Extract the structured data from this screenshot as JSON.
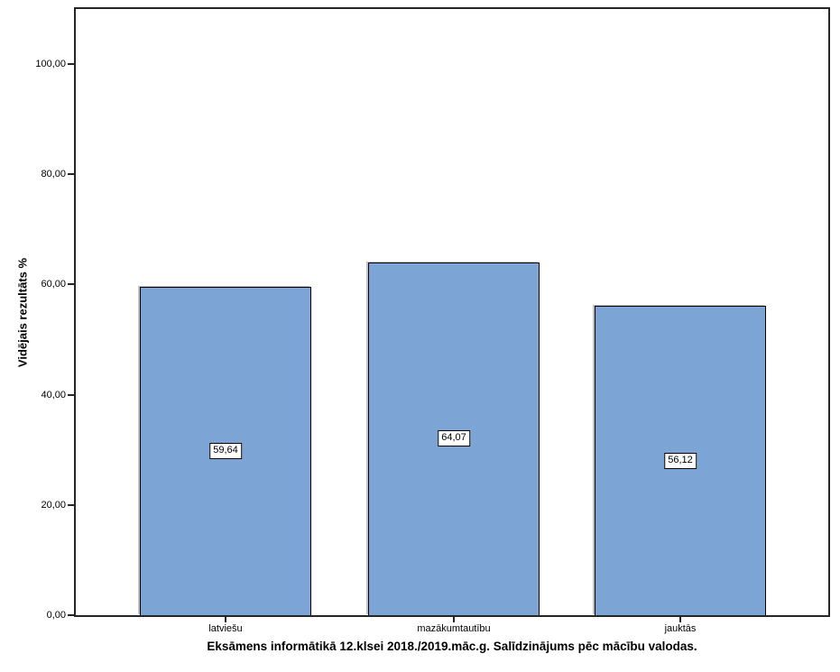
{
  "chart_data": {
    "type": "bar",
    "title": "Eksāmens informātikā 12.klsei 2018./2019.māc.g. Salīdzinājums pēc mācību valodas.",
    "ylabel": "Vidējais rezultāts %",
    "xlabel": "",
    "categories": [
      "latviešu",
      "mazākumtautību",
      "jauktās"
    ],
    "values": [
      59.64,
      64.07,
      56.12
    ],
    "value_labels": [
      "59,64",
      "64,07",
      "56,12"
    ],
    "y_ticks": [
      {
        "value": 0,
        "label": "0,00"
      },
      {
        "value": 20,
        "label": "20,00"
      },
      {
        "value": 40,
        "label": "40,00"
      },
      {
        "value": 60,
        "label": "60,00"
      },
      {
        "value": 80,
        "label": "80,00"
      },
      {
        "value": 100,
        "label": "100,00"
      }
    ],
    "ylim": [
      0,
      110
    ],
    "grid": false,
    "legend": "none",
    "bar_color": "#7CA5D6",
    "bar_border_color": "#000000",
    "frame_color": "#262626"
  }
}
